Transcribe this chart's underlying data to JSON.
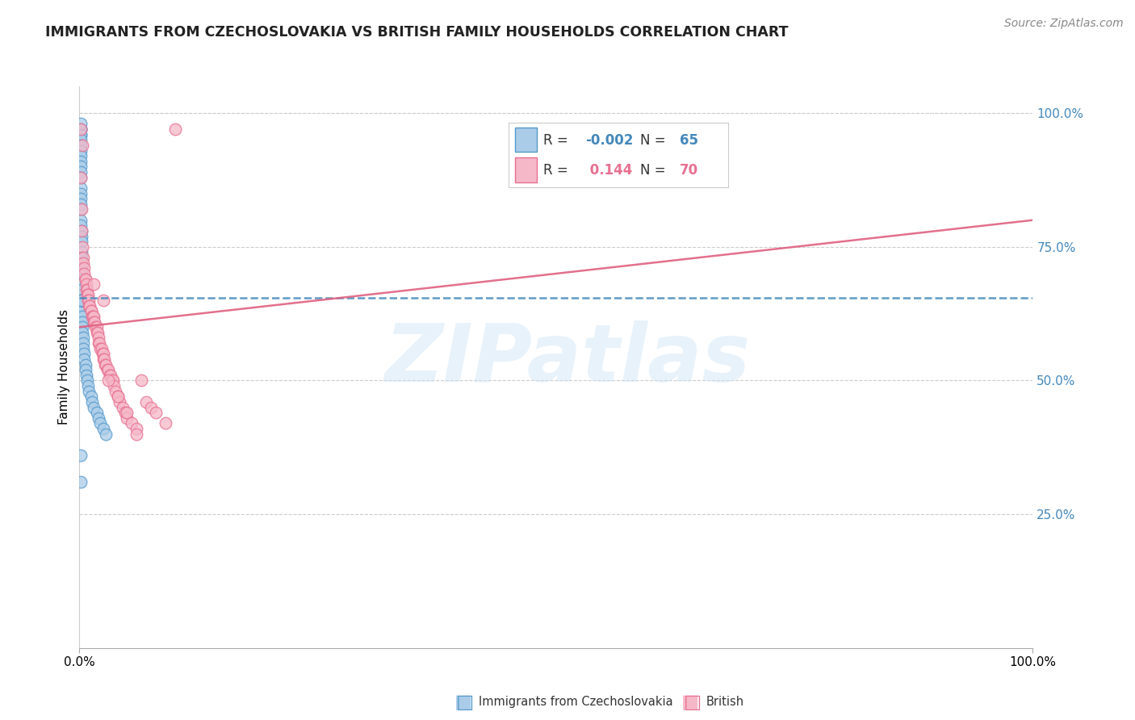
{
  "title": "IMMIGRANTS FROM CZECHOSLOVAKIA VS BRITISH FAMILY HOUSEHOLDS CORRELATION CHART",
  "source": "Source: ZipAtlas.com",
  "ylabel": "Family Households",
  "right_yticks": [
    "100.0%",
    "75.0%",
    "50.0%",
    "25.0%"
  ],
  "right_ytick_vals": [
    1.0,
    0.75,
    0.5,
    0.25
  ],
  "legend_blue_label": "Immigrants from Czechoslovakia",
  "legend_pink_label": "British",
  "R_blue": -0.002,
  "N_blue": 65,
  "R_pink": 0.144,
  "N_pink": 70,
  "blue_color": "#aacce8",
  "pink_color": "#f5b8c8",
  "blue_edge_color": "#5599cc",
  "pink_edge_color": "#e87090",
  "blue_line_color": "#4488bb",
  "pink_line_color": "#e06080",
  "background_color": "#ffffff",
  "blue_scatter_x": [
    0.001,
    0.001,
    0.001,
    0.001,
    0.001,
    0.001,
    0.001,
    0.001,
    0.001,
    0.001,
    0.001,
    0.001,
    0.001,
    0.001,
    0.001,
    0.001,
    0.001,
    0.001,
    0.001,
    0.001,
    0.002,
    0.002,
    0.002,
    0.002,
    0.002,
    0.002,
    0.002,
    0.002,
    0.002,
    0.002,
    0.002,
    0.002,
    0.003,
    0.003,
    0.003,
    0.003,
    0.003,
    0.003,
    0.004,
    0.004,
    0.004,
    0.005,
    0.005,
    0.006,
    0.006,
    0.007,
    0.008,
    0.009,
    0.01,
    0.012,
    0.013,
    0.015,
    0.018,
    0.02,
    0.022,
    0.025,
    0.028,
    0.001,
    0.001,
    0.002,
    0.002,
    0.003,
    0.001,
    0.002,
    0.001
  ],
  "blue_scatter_y": [
    0.97,
    0.97,
    0.97,
    0.96,
    0.96,
    0.95,
    0.94,
    0.93,
    0.92,
    0.91,
    0.9,
    0.89,
    0.88,
    0.86,
    0.85,
    0.84,
    0.83,
    0.82,
    0.8,
    0.79,
    0.78,
    0.77,
    0.76,
    0.74,
    0.73,
    0.72,
    0.71,
    0.7,
    0.69,
    0.68,
    0.67,
    0.65,
    0.64,
    0.63,
    0.62,
    0.61,
    0.6,
    0.59,
    0.58,
    0.57,
    0.56,
    0.55,
    0.54,
    0.53,
    0.52,
    0.51,
    0.5,
    0.49,
    0.48,
    0.47,
    0.46,
    0.45,
    0.44,
    0.43,
    0.42,
    0.41,
    0.4,
    0.36,
    0.31,
    0.65,
    0.65,
    0.65,
    0.65,
    0.65,
    0.98
  ],
  "pink_scatter_x": [
    0.001,
    0.001,
    0.002,
    0.002,
    0.003,
    0.003,
    0.004,
    0.004,
    0.005,
    0.005,
    0.006,
    0.006,
    0.007,
    0.007,
    0.008,
    0.008,
    0.009,
    0.009,
    0.01,
    0.01,
    0.011,
    0.012,
    0.012,
    0.013,
    0.014,
    0.015,
    0.015,
    0.016,
    0.017,
    0.018,
    0.018,
    0.019,
    0.02,
    0.02,
    0.021,
    0.022,
    0.023,
    0.024,
    0.025,
    0.025,
    0.026,
    0.027,
    0.028,
    0.029,
    0.03,
    0.032,
    0.033,
    0.034,
    0.035,
    0.036,
    0.038,
    0.04,
    0.042,
    0.045,
    0.048,
    0.05,
    0.055,
    0.06,
    0.065,
    0.07,
    0.075,
    0.08,
    0.09,
    0.1,
    0.015,
    0.025,
    0.03,
    0.04,
    0.05,
    0.06
  ],
  "pink_scatter_y": [
    0.97,
    0.88,
    0.82,
    0.78,
    0.94,
    0.75,
    0.73,
    0.72,
    0.71,
    0.7,
    0.69,
    0.69,
    0.68,
    0.67,
    0.67,
    0.66,
    0.66,
    0.65,
    0.65,
    0.64,
    0.64,
    0.63,
    0.63,
    0.62,
    0.62,
    0.62,
    0.61,
    0.61,
    0.6,
    0.6,
    0.59,
    0.59,
    0.58,
    0.57,
    0.57,
    0.56,
    0.56,
    0.55,
    0.55,
    0.54,
    0.54,
    0.53,
    0.53,
    0.52,
    0.52,
    0.51,
    0.51,
    0.5,
    0.5,
    0.49,
    0.48,
    0.47,
    0.46,
    0.45,
    0.44,
    0.43,
    0.42,
    0.41,
    0.5,
    0.46,
    0.45,
    0.44,
    0.42,
    0.97,
    0.68,
    0.65,
    0.5,
    0.47,
    0.44,
    0.4
  ],
  "xlim": [
    0.0,
    1.0
  ],
  "ylim": [
    0.0,
    1.05
  ]
}
